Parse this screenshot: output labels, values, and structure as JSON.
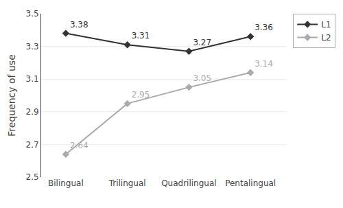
{
  "chart_data": {
    "type": "line",
    "categories": [
      "Bilingual",
      "Trilingual",
      "Quadrilingual",
      "Pentalingual"
    ],
    "series": [
      {
        "name": "L1",
        "color": "#333333",
        "values": [
          3.38,
          3.31,
          3.27,
          3.36
        ]
      },
      {
        "name": "L2",
        "color": "#aaaaaa",
        "values": [
          2.64,
          2.95,
          3.05,
          3.14
        ]
      }
    ],
    "y_label": "Frequency of use",
    "ylim": [
      2.5,
      3.5
    ],
    "yticks": [
      2.5,
      2.7,
      2.9,
      3.1,
      3.3,
      3.5
    ],
    "grid": true,
    "legend": "right",
    "marker": "diamond",
    "line_style": "solid",
    "data_labels": true
  }
}
